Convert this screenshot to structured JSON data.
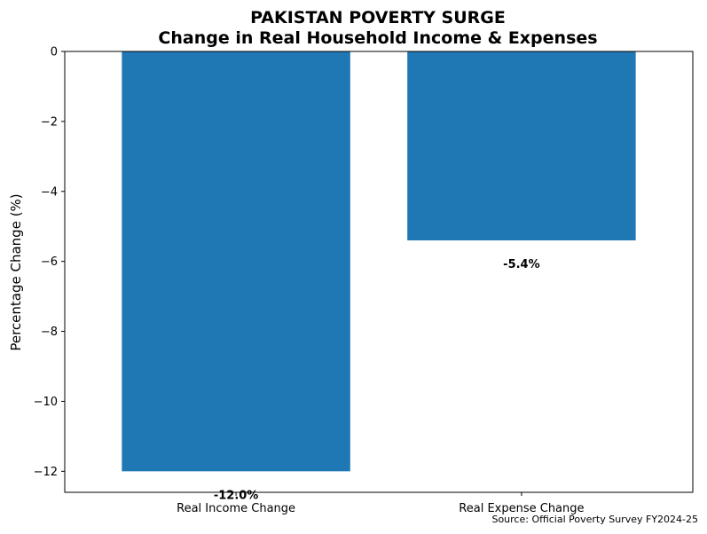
{
  "chart_data": {
    "type": "bar",
    "title": "PAKISTAN POVERTY SURGE",
    "subtitle": "Change in Real Household Income & Expenses",
    "xlabel": "",
    "ylabel": "Percentage Change (%)",
    "categories": [
      "Real Income Change",
      "Real Expense Change"
    ],
    "values": [
      -12.0,
      -5.4
    ],
    "data_labels": [
      "-12.0%",
      "-5.4%"
    ],
    "ylim": [
      -12.6,
      0
    ],
    "yticks": [
      0,
      -2,
      -4,
      -6,
      -8,
      -10,
      -12
    ],
    "ytick_labels": [
      "0",
      "−2",
      "−4",
      "−6",
      "−8",
      "−10",
      "−12"
    ],
    "bar_color": "#1f77b4",
    "grid": false,
    "source": "Source: Official Poverty Survey FY2024-25"
  }
}
